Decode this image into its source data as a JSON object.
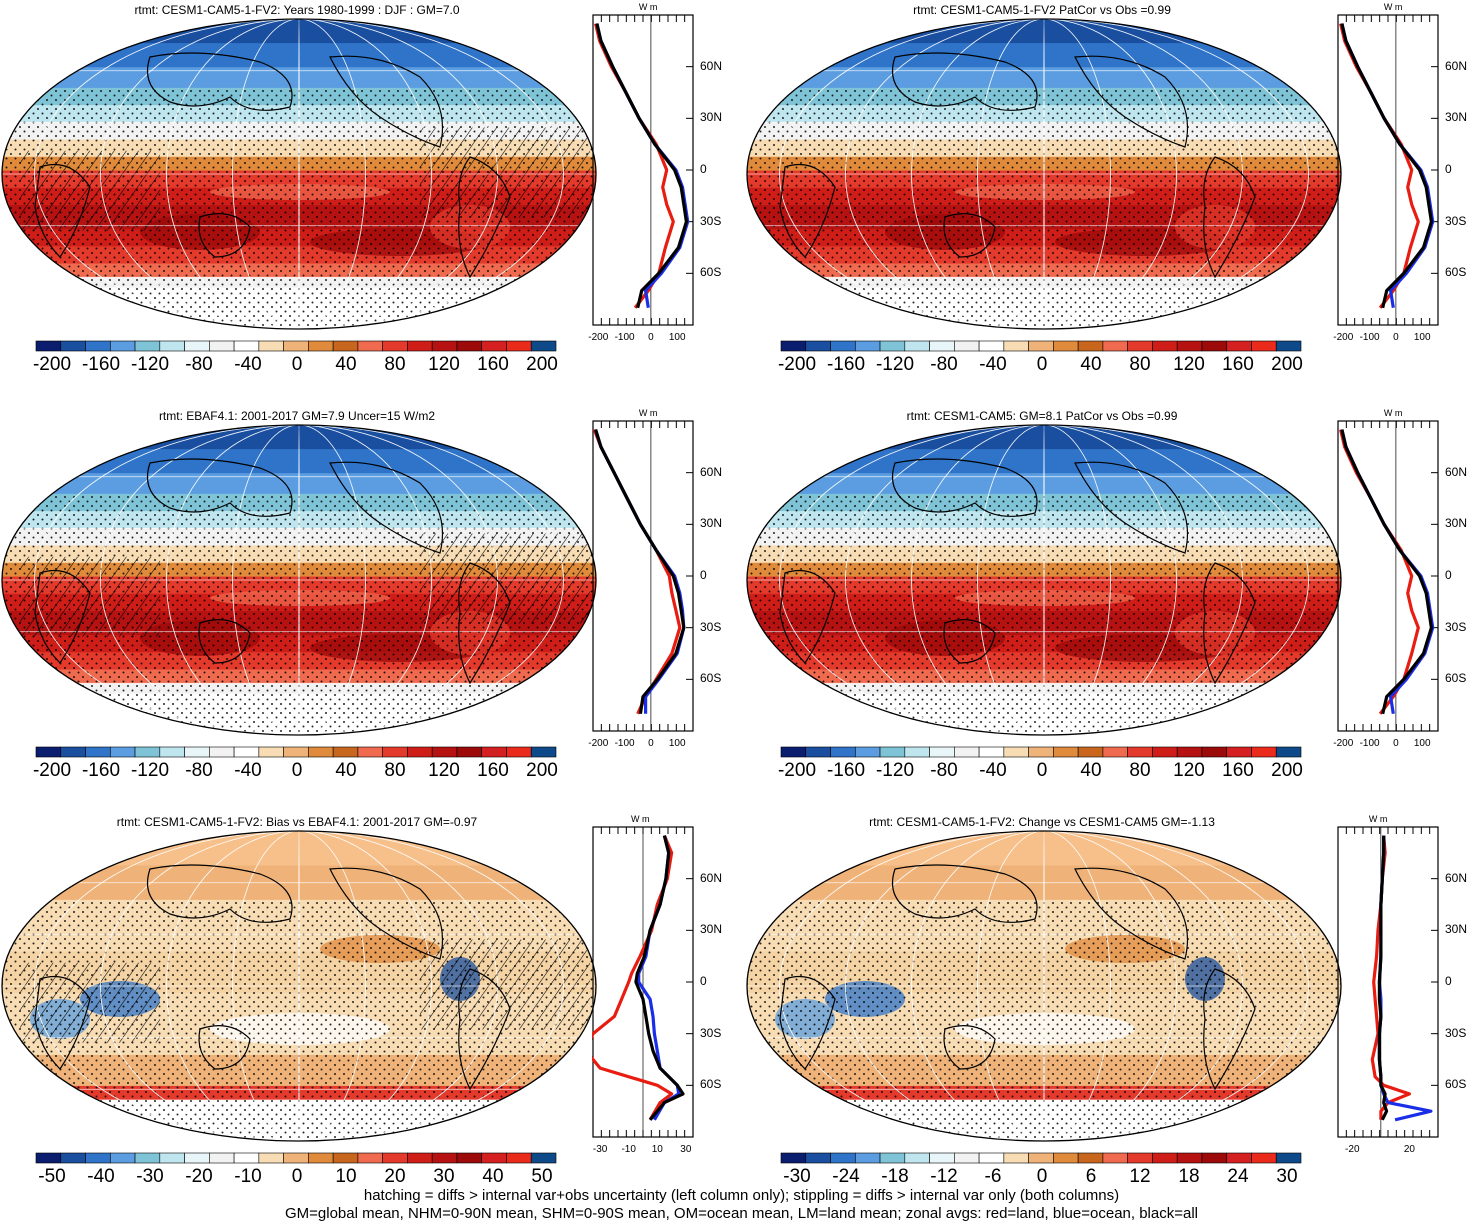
{
  "chart_data": [
    {
      "type": "heatmap",
      "title": "rtmt: CESM1-CAM5-1-FV2: Years 1980-1999 : DJF : GM=7.0",
      "colorbar_ticks": [
        "-200",
        "-160",
        "-120",
        "-80",
        "-40",
        "0",
        "40",
        "80",
        "120",
        "160",
        "200"
      ],
      "zonal_x_ticks": [
        "-200",
        "-100",
        "0",
        "100"
      ],
      "lat_ticks": [
        "60N",
        "30N",
        "0",
        "30S",
        "60S"
      ],
      "unit": "W m",
      "hatching": true,
      "zonal": {
        "lat": [
          85,
          75,
          60,
          45,
          30,
          15,
          0,
          -10,
          -20,
          -30,
          -45,
          -60,
          -70,
          -80
        ],
        "land": [
          -210,
          -195,
          -150,
          -95,
          -45,
          20,
          60,
          45,
          60,
          85,
          55,
          30,
          -10,
          -60
        ],
        "ocean": [
          -205,
          -190,
          -145,
          -95,
          -45,
          15,
          95,
          120,
          130,
          140,
          110,
          40,
          -20,
          -10
        ],
        "all": [
          -205,
          -190,
          -145,
          -95,
          -45,
          15,
          90,
          115,
          125,
          135,
          105,
          30,
          -35,
          -50
        ]
      }
    },
    {
      "type": "heatmap",
      "title": "rtmt: CESM1-CAM5-1-FV2 PatCor vs Obs =0.99",
      "colorbar_ticks": [
        "-200",
        "-160",
        "-120",
        "-80",
        "-40",
        "0",
        "40",
        "80",
        "120",
        "160",
        "200"
      ],
      "zonal_x_ticks": [
        "-200",
        "-100",
        "0",
        "100"
      ],
      "lat_ticks": [
        "60N",
        "30N",
        "0",
        "30S",
        "60S"
      ],
      "unit": "W m",
      "hatching": false,
      "zonal": {
        "lat": [
          85,
          75,
          60,
          45,
          30,
          15,
          0,
          -10,
          -20,
          -30,
          -45,
          -60,
          -70,
          -80
        ],
        "land": [
          -210,
          -195,
          -150,
          -95,
          -45,
          20,
          60,
          45,
          60,
          85,
          55,
          30,
          -10,
          -60
        ],
        "ocean": [
          -205,
          -190,
          -145,
          -95,
          -45,
          15,
          95,
          120,
          130,
          140,
          110,
          40,
          -20,
          -10
        ],
        "all": [
          -205,
          -190,
          -145,
          -95,
          -45,
          15,
          90,
          115,
          125,
          135,
          105,
          30,
          -35,
          -50
        ]
      }
    },
    {
      "type": "heatmap",
      "title": "rtmt: EBAF4.1: 2001-2017 GM=7.9 Uncer=15 W/m2",
      "colorbar_ticks": [
        "-200",
        "-160",
        "-120",
        "-80",
        "-40",
        "0",
        "40",
        "80",
        "120",
        "160",
        "200"
      ],
      "zonal_x_ticks": [
        "-200",
        "-100",
        "0",
        "100"
      ],
      "lat_ticks": [
        "60N",
        "30N",
        "0",
        "30S",
        "60S"
      ],
      "unit": "W m",
      "hatching": true,
      "zonal": {
        "lat": [
          85,
          75,
          60,
          45,
          30,
          15,
          0,
          -10,
          -20,
          -30,
          -45,
          -60,
          -70,
          -80
        ],
        "land": [
          -215,
          -190,
          -140,
          -90,
          -40,
          20,
          70,
          80,
          95,
          110,
          80,
          20,
          -20,
          -50
        ],
        "ocean": [
          -210,
          -190,
          -140,
          -90,
          -40,
          20,
          90,
          110,
          120,
          125,
          100,
          30,
          -20,
          -20
        ],
        "all": [
          -210,
          -190,
          -140,
          -90,
          -40,
          20,
          85,
          105,
          115,
          125,
          95,
          25,
          -30,
          -40
        ]
      }
    },
    {
      "type": "heatmap",
      "title": "rtmt: CESM1-CAM5: GM=8.1 PatCor vs Obs =0.99",
      "colorbar_ticks": [
        "-200",
        "-160",
        "-120",
        "-80",
        "-40",
        "0",
        "40",
        "80",
        "120",
        "160",
        "200"
      ],
      "zonal_x_ticks": [
        "-200",
        "-100",
        "0",
        "100"
      ],
      "lat_ticks": [
        "60N",
        "30N",
        "0",
        "30S",
        "60S"
      ],
      "unit": "W m",
      "hatching": false,
      "zonal": {
        "lat": [
          85,
          75,
          60,
          45,
          30,
          15,
          0,
          -10,
          -20,
          -30,
          -45,
          -60,
          -70,
          -80
        ],
        "land": [
          -210,
          -195,
          -150,
          -95,
          -45,
          20,
          60,
          45,
          60,
          85,
          60,
          30,
          -10,
          -60
        ],
        "ocean": [
          -205,
          -190,
          -145,
          -95,
          -45,
          15,
          95,
          120,
          130,
          140,
          110,
          40,
          -20,
          -10
        ],
        "all": [
          -205,
          -190,
          -145,
          -95,
          -45,
          15,
          90,
          115,
          125,
          135,
          105,
          30,
          -35,
          -50
        ]
      }
    },
    {
      "type": "heatmap",
      "title": "rtmt: CESM1-CAM5-1-FV2: Bias vs EBAF4.1: 2001-2017 GM=-0.97",
      "colorbar_ticks": [
        "-50",
        "-40",
        "-30",
        "-20",
        "-10",
        "0",
        "10",
        "20",
        "30",
        "40",
        "50"
      ],
      "zonal_x_ticks": [
        "-30",
        "-10",
        "10",
        "30"
      ],
      "lat_ticks": [
        "60N",
        "30N",
        "0",
        "30S",
        "60S"
      ],
      "unit": "W m",
      "hatching": true,
      "zonal": {
        "lat": [
          85,
          75,
          60,
          45,
          30,
          15,
          5,
          0,
          -10,
          -20,
          -30,
          -40,
          -50,
          -60,
          -65,
          -70,
          -80
        ],
        "land": [
          15,
          20,
          17,
          10,
          6,
          -2,
          -8,
          -10,
          -15,
          -20,
          -35,
          -40,
          -30,
          10,
          20,
          12,
          5
        ],
        "ocean": [
          15,
          18,
          16,
          12,
          5,
          2,
          -3,
          -3,
          5,
          7,
          8,
          10,
          12,
          24,
          25,
          15,
          8
        ],
        "all": [
          15,
          18,
          16,
          12,
          5,
          1,
          -4,
          -5,
          0,
          2,
          4,
          7,
          12,
          24,
          28,
          15,
          5
        ]
      }
    },
    {
      "type": "heatmap",
      "title": "rtmt: CESM1-CAM5-1-FV2: Change vs CESM1-CAM5 GM=-1.13",
      "colorbar_ticks": [
        "-30",
        "-24",
        "-18",
        "-12",
        "-6",
        "0",
        "6",
        "12",
        "18",
        "24",
        "30"
      ],
      "zonal_x_ticks": [
        "-20",
        "20"
      ],
      "lat_ticks": [
        "60N",
        "30N",
        "0",
        "30S",
        "60S"
      ],
      "unit": "W m",
      "hatching": false,
      "zonal": {
        "lat": [
          85,
          75,
          60,
          45,
          30,
          15,
          0,
          -10,
          -20,
          -30,
          -45,
          -55,
          -60,
          -65,
          -70,
          -75,
          -80
        ],
        "land": [
          2,
          3,
          1,
          0,
          -2,
          -3,
          -5,
          -4,
          -3,
          -2,
          -6,
          -4,
          2,
          20,
          5,
          0,
          0
        ],
        "ocean": [
          2,
          2,
          1,
          0,
          0,
          0,
          -1,
          0,
          0,
          -1,
          -1,
          0,
          0,
          2,
          5,
          35,
          10
        ],
        "all": [
          2,
          2,
          1,
          0,
          0,
          0,
          -1,
          -1,
          0,
          -1,
          -1,
          0,
          0,
          3,
          2,
          4,
          1
        ]
      }
    }
  ],
  "footnotes": [
    "hatching = diffs > internal var+obs uncertainty (left column only); stippling = diffs > internal var only (both columns)",
    "GM=global mean, NHM=0-90N mean, SHM=0-90S mean, OM=ocean mean, LM=land mean; zonal avgs: red=land, blue=ocean, black=all"
  ],
  "colors": {
    "palette": [
      "#0b1d6e",
      "#1a4fa0",
      "#2f74c9",
      "#5b9de0",
      "#7fc4d6",
      "#bfe6ef",
      "#e9f6f9",
      "#f2f2f2",
      "#ffffff",
      "#f7dcb4",
      "#efb37a",
      "#e08a3c",
      "#c8661e",
      "#f06a4f",
      "#e33a2c",
      "#cf1d18",
      "#b71212",
      "#9c0a0a",
      "#d42020",
      "#ea2a1a",
      "#0e4a8a"
    ],
    "land": "#e81c10",
    "ocean": "#1a2ee8",
    "all": "#000000"
  }
}
